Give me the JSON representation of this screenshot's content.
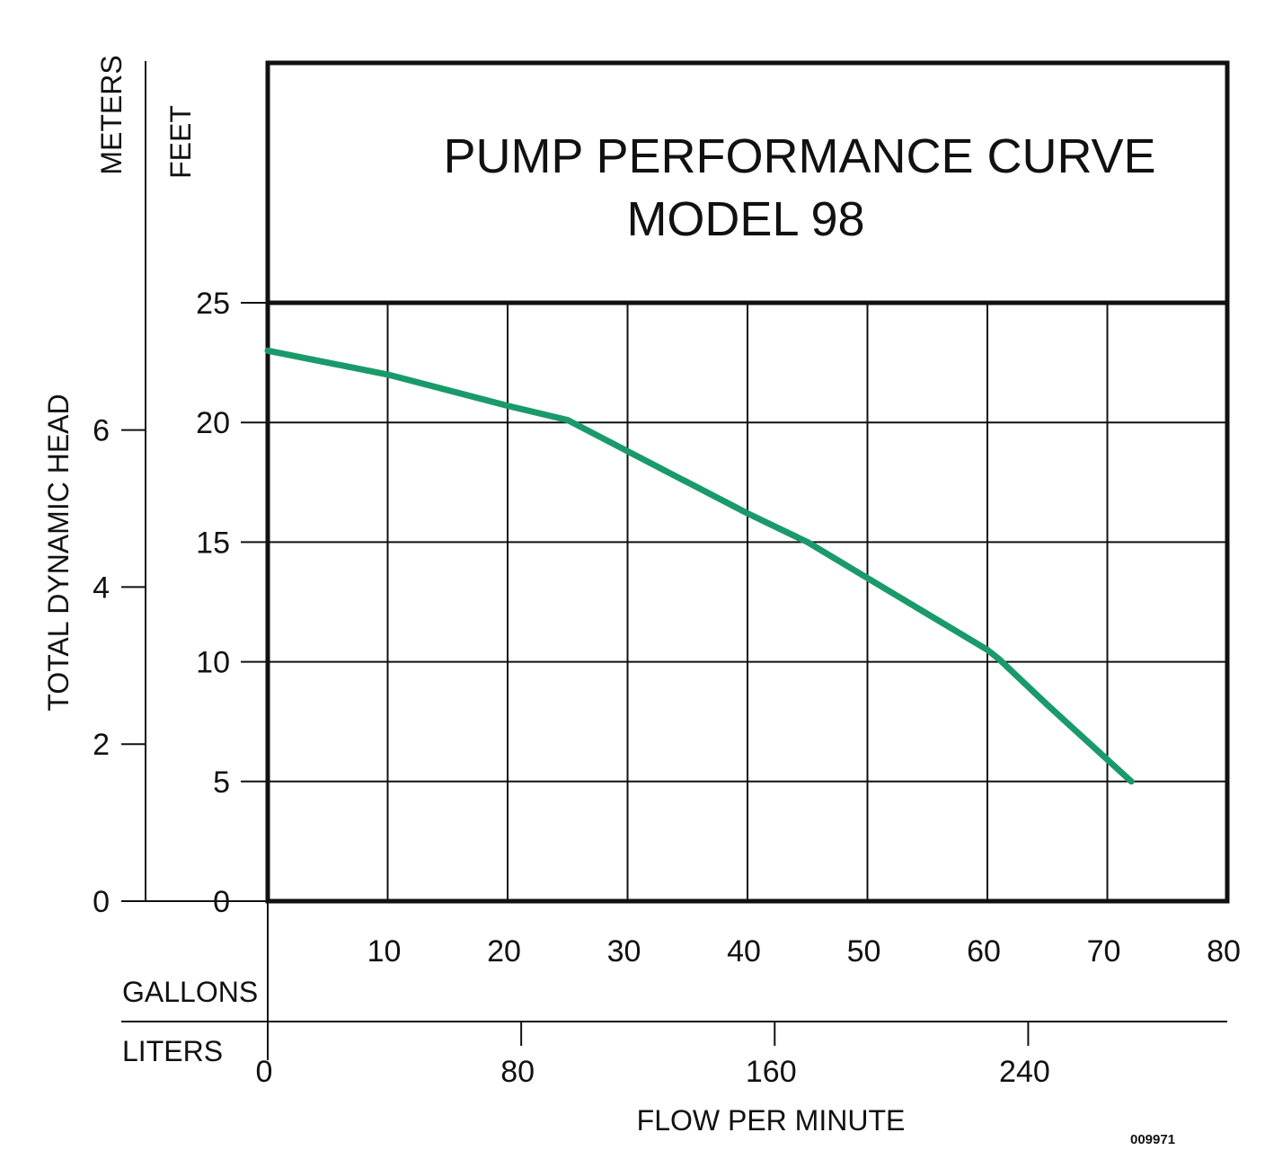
{
  "chart_data": {
    "type": "line",
    "title": "PUMP PERFORMANCE CURVE",
    "subtitle": "MODEL 98",
    "y_left_outer_label": "METERS",
    "y_left_inner_label": "FEET",
    "y_axis_title": "TOTAL DYNAMIC HEAD",
    "x_axis_title": "FLOW PER MINUTE",
    "x_primary_unit": "GALLONS",
    "x_secondary_unit": "LITERS",
    "doc_code": "009971",
    "feet_ticks": [
      "0",
      "5",
      "10",
      "15",
      "20",
      "25"
    ],
    "feet_tick_values": [
      0,
      5,
      10,
      15,
      20,
      25
    ],
    "meter_ticks": [
      "2",
      "4",
      "6"
    ],
    "meter_tick_values": [
      2,
      4,
      6
    ],
    "gallon_ticks": [
      "10",
      "20",
      "30",
      "40",
      "50",
      "60",
      "70",
      "80"
    ],
    "gallon_tick_values": [
      10,
      20,
      30,
      40,
      50,
      60,
      70,
      80
    ],
    "liter_ticks": [
      "0",
      "80",
      "160",
      "240"
    ],
    "liter_tick_values": [
      0,
      80,
      160,
      240
    ],
    "xlim": [
      0,
      80
    ],
    "ylim": [
      0,
      25
    ],
    "grid": true,
    "series_color": "#1a9a6a",
    "series": [
      {
        "x": [
          0,
          10,
          20,
          25,
          30,
          40,
          45,
          50,
          60,
          61,
          65,
          72
        ],
        "y": [
          23,
          22,
          20.7,
          20.1,
          18.8,
          16.2,
          15,
          13.5,
          10.5,
          10.1,
          8.2,
          5
        ]
      }
    ]
  }
}
